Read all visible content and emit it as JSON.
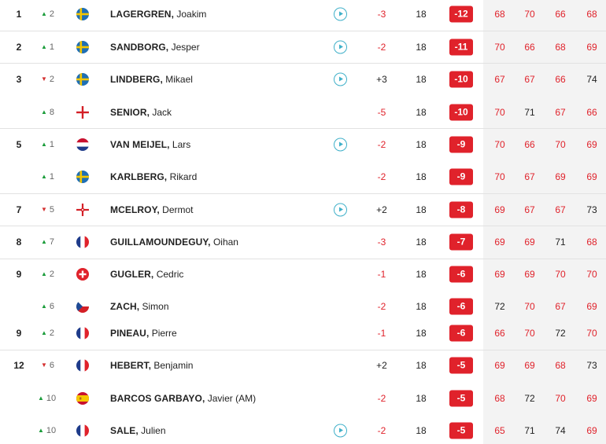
{
  "rows": [
    {
      "pos": "1",
      "move_dir": "up",
      "move": "2",
      "flag": "sweden-flag",
      "surname": "LAGERGREN,",
      "first": "Joakim",
      "play": true,
      "today": "-3",
      "holes": "18",
      "total": "-12",
      "rounds": [
        "68",
        "70",
        "66",
        "68"
      ]
    },
    {
      "pos": "2",
      "move_dir": "up",
      "move": "1",
      "flag": "sweden-flag",
      "surname": "SANDBORG,",
      "first": "Jesper",
      "play": true,
      "today": "-2",
      "holes": "18",
      "total": "-11",
      "rounds": [
        "70",
        "66",
        "68",
        "69"
      ]
    },
    {
      "pos": "3",
      "move_dir": "down",
      "move": "2",
      "flag": "sweden-flag",
      "surname": "LINDBERG,",
      "first": "Mikael",
      "play": true,
      "today": "+3",
      "holes": "18",
      "total": "-10",
      "rounds": [
        "67",
        "67",
        "66",
        "74"
      ]
    },
    {
      "pos": "",
      "move_dir": "up",
      "move": "8",
      "flag": "england-flag",
      "surname": "SENIOR,",
      "first": "Jack",
      "play": false,
      "today": "-5",
      "holes": "18",
      "total": "-10",
      "rounds": [
        "70",
        "71",
        "67",
        "66"
      ]
    },
    {
      "pos": "5",
      "move_dir": "up",
      "move": "1",
      "flag": "netherlands-flag",
      "surname": "VAN MEIJEL,",
      "first": "Lars",
      "play": true,
      "today": "-2",
      "holes": "18",
      "total": "-9",
      "rounds": [
        "70",
        "66",
        "70",
        "69"
      ]
    },
    {
      "pos": "",
      "move_dir": "up",
      "move": "1",
      "flag": "sweden-flag",
      "surname": "KARLBERG,",
      "first": "Rikard",
      "play": false,
      "today": "-2",
      "holes": "18",
      "total": "-9",
      "rounds": [
        "70",
        "67",
        "69",
        "69"
      ]
    },
    {
      "pos": "7",
      "move_dir": "down",
      "move": "5",
      "flag": "northern-ireland-flag",
      "surname": "MCELROY,",
      "first": "Dermot",
      "play": true,
      "today": "+2",
      "holes": "18",
      "total": "-8",
      "rounds": [
        "69",
        "67",
        "67",
        "73"
      ]
    },
    {
      "pos": "8",
      "move_dir": "up",
      "move": "7",
      "flag": "france-flag",
      "surname": "GUILLAMOUNDEGUY,",
      "first": "Oihan",
      "play": false,
      "today": "-3",
      "holes": "18",
      "total": "-7",
      "rounds": [
        "69",
        "69",
        "71",
        "68"
      ]
    },
    {
      "pos": "9",
      "move_dir": "up",
      "move": "2",
      "flag": "switzerland-flag",
      "surname": "GUGLER,",
      "first": "Cedric",
      "play": false,
      "today": "-1",
      "holes": "18",
      "total": "-6",
      "rounds": [
        "69",
        "69",
        "70",
        "70"
      ]
    },
    {
      "pos": "",
      "move_dir": "up",
      "move": "6",
      "flag": "czech-flag",
      "surname": "ZACH,",
      "first": "Simon",
      "play": false,
      "today": "-2",
      "holes": "18",
      "total": "-6",
      "rounds": [
        "72",
        "70",
        "67",
        "69"
      ]
    },
    {
      "pos": "9",
      "move_dir": "up",
      "move": "2",
      "flag": "france-flag",
      "surname": "PINEAU,",
      "first": "Pierre",
      "play": false,
      "today": "-1",
      "holes": "18",
      "total": "-6",
      "rounds": [
        "66",
        "70",
        "72",
        "70"
      ]
    },
    {
      "pos": "12",
      "move_dir": "down",
      "move": "6",
      "flag": "france-flag",
      "surname": "HEBERT,",
      "first": "Benjamin",
      "play": false,
      "today": "+2",
      "holes": "18",
      "total": "-5",
      "rounds": [
        "69",
        "69",
        "68",
        "73"
      ]
    },
    {
      "pos": "",
      "move_dir": "up",
      "move": "10",
      "flag": "spain-flag",
      "surname": "BARCOS GARBAYO,",
      "first": "Javier (AM)",
      "play": false,
      "today": "-2",
      "holes": "18",
      "total": "-5",
      "rounds": [
        "68",
        "72",
        "70",
        "69"
      ]
    },
    {
      "pos": "",
      "move_dir": "up",
      "move": "10",
      "flag": "france-flag",
      "surname": "SALE,",
      "first": "Julien",
      "play": true,
      "today": "-2",
      "holes": "18",
      "total": "-5",
      "rounds": [
        "65",
        "71",
        "74",
        "69"
      ]
    }
  ],
  "colors": {
    "accent_red": "#e0222b",
    "play_teal": "#3fb0c9",
    "up_green": "#1a9c3a",
    "down_red": "#d32f2f"
  }
}
